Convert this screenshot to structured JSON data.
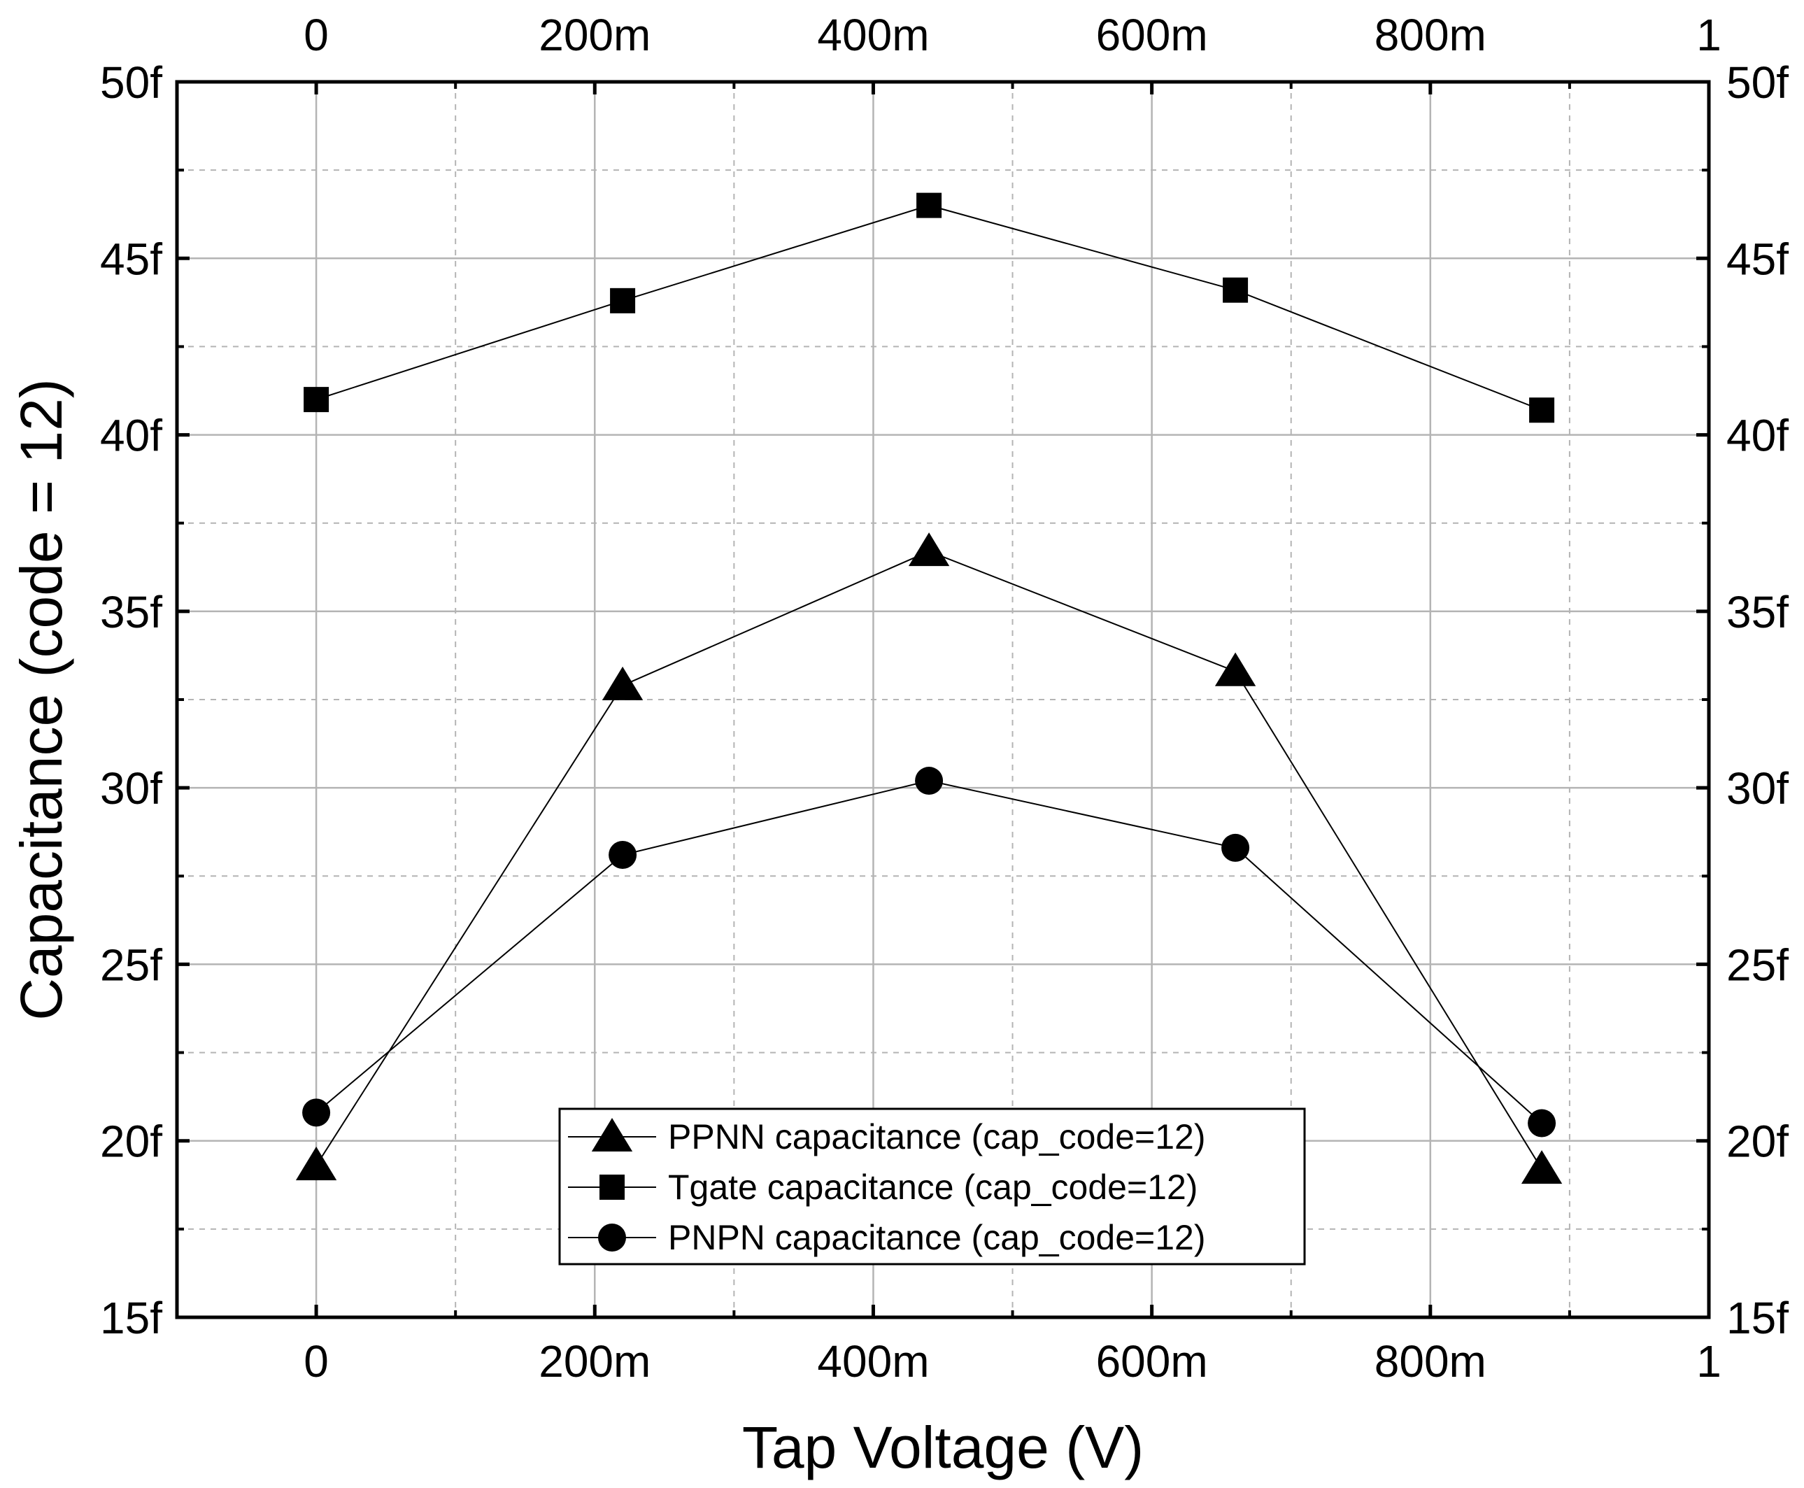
{
  "chart_data": {
    "type": "line",
    "xlabel": "Tap Voltage (V)",
    "ylabel": "Capacitance (code = 12)",
    "xlim": [
      -0.1,
      1.0
    ],
    "ylim": [
      15,
      50
    ],
    "x_ticks": [
      {
        "value": 0,
        "label": "0"
      },
      {
        "value": 0.2,
        "label": "200m"
      },
      {
        "value": 0.4,
        "label": "400m"
      },
      {
        "value": 0.6,
        "label": "600m"
      },
      {
        "value": 0.8,
        "label": "800m"
      },
      {
        "value": 1.0,
        "label": "1"
      }
    ],
    "y_ticks": [
      {
        "value": 15,
        "label": "15f"
      },
      {
        "value": 20,
        "label": "20f"
      },
      {
        "value": 25,
        "label": "25f"
      },
      {
        "value": 30,
        "label": "30f"
      },
      {
        "value": 35,
        "label": "35f"
      },
      {
        "value": 40,
        "label": "40f"
      },
      {
        "value": 45,
        "label": "45f"
      },
      {
        "value": 50,
        "label": "50f"
      }
    ],
    "grid": true,
    "minor_grid": true,
    "mirror_axes": true,
    "legend_position": "bottom-center",
    "x": [
      0,
      0.22,
      0.44,
      0.66,
      0.88
    ],
    "series": [
      {
        "name": "PPNN capacitance (cap_code=12)",
        "marker": "triangle",
        "values": [
          19.3,
          32.9,
          36.7,
          33.3,
          19.2
        ]
      },
      {
        "name": "Tgate capacitance (cap_code=12)",
        "marker": "square",
        "values": [
          41.0,
          43.8,
          46.5,
          44.1,
          40.7
        ]
      },
      {
        "name": "PNPN capacitance (cap_code=12)",
        "marker": "circle",
        "values": [
          20.8,
          28.1,
          30.2,
          28.3,
          20.5
        ]
      }
    ],
    "colors": {
      "line": "#000000",
      "grid": "#b4b4b4",
      "frame": "#000000"
    }
  }
}
